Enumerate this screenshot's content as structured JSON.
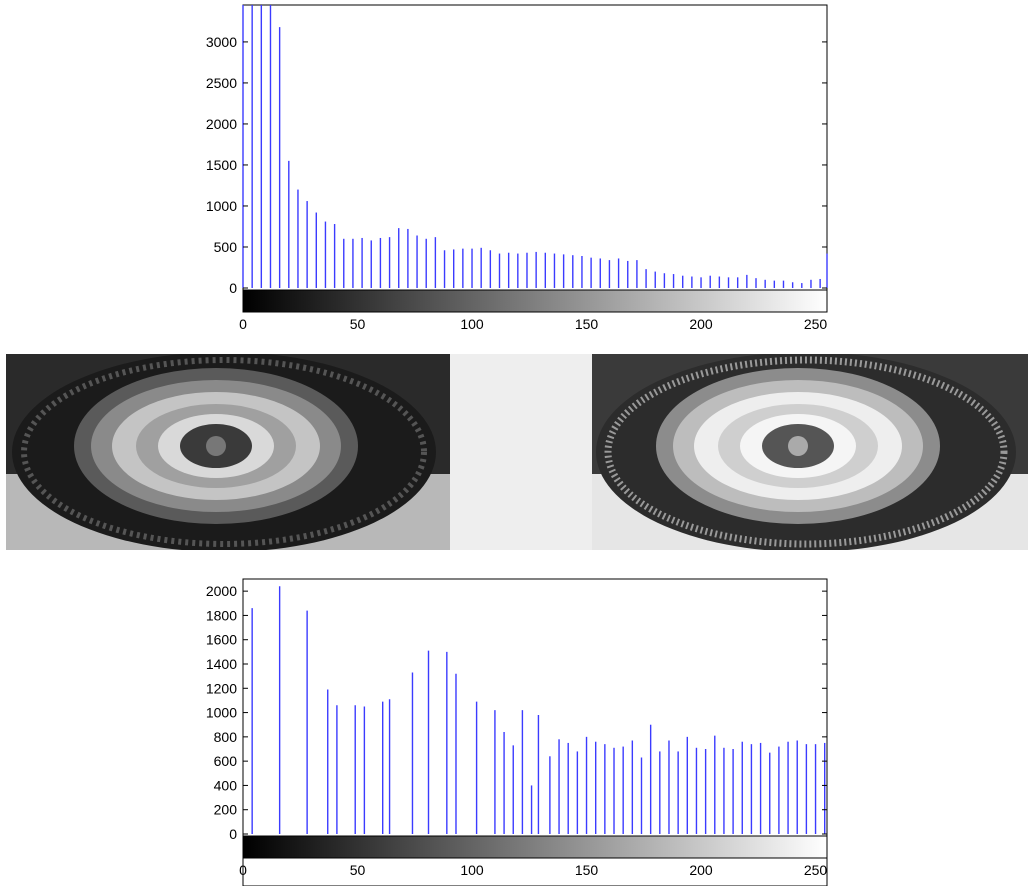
{
  "figure": {
    "images": [
      {
        "name": "original-tire-image",
        "description": "tire"
      },
      {
        "name": "equalized-tire-image",
        "description": "tire"
      }
    ]
  },
  "chart_data": [
    {
      "type": "bar",
      "xlim": [
        0,
        255
      ],
      "ylim": [
        -30,
        3450
      ],
      "xticks": [
        0,
        50,
        100,
        150,
        200,
        250
      ],
      "yticks": [
        0,
        500,
        1000,
        1500,
        2000,
        2500,
        3000
      ],
      "colorbar": "grayscale 0 to 255",
      "grid": false,
      "x": [
        0,
        4,
        8,
        12,
        16,
        20,
        24,
        28,
        32,
        36,
        40,
        44,
        48,
        52,
        56,
        60,
        64,
        68,
        72,
        76,
        80,
        84,
        88,
        92,
        96,
        100,
        104,
        108,
        112,
        116,
        120,
        124,
        128,
        132,
        136,
        140,
        144,
        148,
        152,
        156,
        160,
        164,
        168,
        172,
        176,
        180,
        184,
        188,
        192,
        196,
        200,
        204,
        208,
        212,
        216,
        220,
        224,
        228,
        232,
        236,
        240,
        244,
        248,
        252,
        255
      ],
      "values": [
        3450,
        3450,
        3450,
        3450,
        3180,
        1550,
        1200,
        1060,
        920,
        810,
        780,
        600,
        600,
        610,
        580,
        610,
        620,
        730,
        720,
        640,
        600,
        620,
        460,
        470,
        480,
        480,
        490,
        460,
        420,
        430,
        420,
        430,
        440,
        430,
        420,
        410,
        400,
        390,
        370,
        360,
        340,
        360,
        330,
        340,
        230,
        200,
        180,
        170,
        150,
        140,
        130,
        150,
        140,
        130,
        130,
        160,
        120,
        100,
        90,
        90,
        70,
        60,
        100,
        110,
        420
      ]
    },
    {
      "type": "bar",
      "xlim": [
        0,
        255
      ],
      "ylim": [
        -80,
        2100
      ],
      "xticks": [
        0,
        50,
        100,
        150,
        200,
        250
      ],
      "yticks": [
        0,
        200,
        400,
        600,
        800,
        1000,
        1200,
        1400,
        1600,
        1800,
        2000
      ],
      "colorbar": "grayscale 0 to 255",
      "grid": false,
      "x": [
        0,
        4,
        16,
        28,
        37,
        41,
        49,
        53,
        61,
        64,
        74,
        81,
        89,
        93,
        102,
        110,
        114,
        118,
        122,
        126,
        129,
        134,
        138,
        142,
        146,
        150,
        154,
        158,
        162,
        166,
        170,
        174,
        178,
        182,
        186,
        190,
        194,
        198,
        202,
        206,
        210,
        214,
        218,
        222,
        226,
        230,
        234,
        238,
        242,
        246,
        250,
        254
      ],
      "values": [
        0,
        1860,
        2040,
        1840,
        1190,
        1060,
        1060,
        1050,
        1090,
        1110,
        1330,
        1510,
        1500,
        1320,
        1090,
        1020,
        840,
        730,
        1020,
        400,
        980,
        640,
        780,
        750,
        680,
        800,
        760,
        740,
        710,
        720,
        770,
        630,
        900,
        680,
        770,
        680,
        800,
        710,
        700,
        810,
        710,
        700,
        760,
        740,
        750,
        670,
        720,
        760,
        770,
        740,
        740,
        750
      ]
    }
  ]
}
